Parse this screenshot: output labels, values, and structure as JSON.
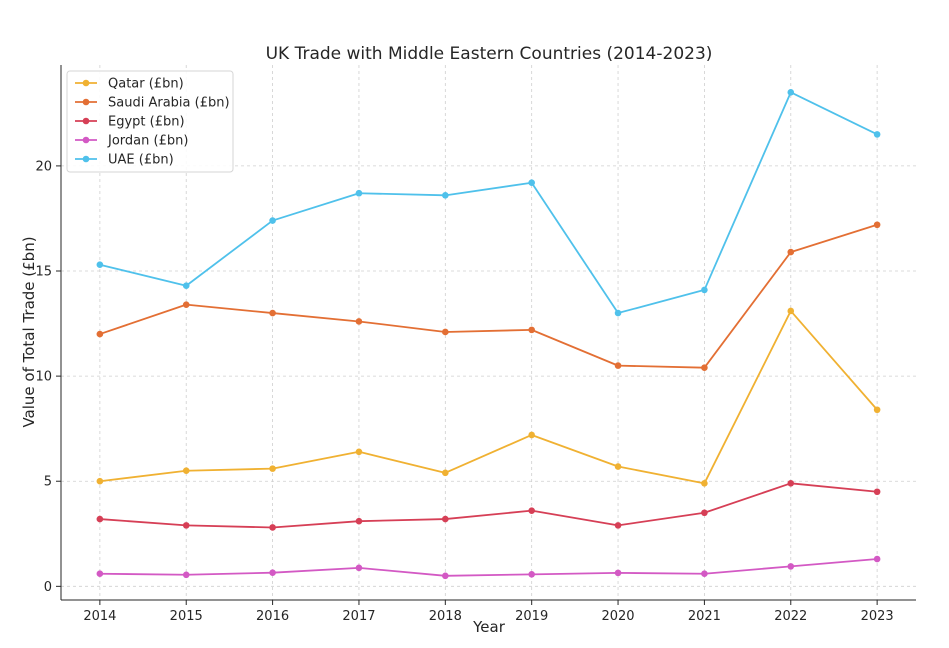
{
  "chart_data": {
    "type": "line",
    "title": "UK Trade with Middle Eastern Countries (2014-2023)",
    "xlabel": "Year",
    "ylabel": "Value of Total Trade (£bn)",
    "x": [
      2014,
      2015,
      2016,
      2017,
      2018,
      2019,
      2020,
      2021,
      2022,
      2023
    ],
    "xlim": [
      2013.55,
      2023.45
    ],
    "ylim": [
      -0.65,
      24.8
    ],
    "yticks": [
      0,
      5,
      10,
      15,
      20
    ],
    "grid": true,
    "legend_position": "upper-left",
    "series": [
      {
        "name": "Qatar (£bn)",
        "color": "#F0B132",
        "values": [
          5.0,
          5.5,
          5.6,
          6.4,
          5.4,
          7.2,
          5.7,
          4.9,
          13.1,
          8.4
        ]
      },
      {
        "name": "Saudi Arabia (£bn)",
        "color": "#E36F34",
        "values": [
          12.0,
          13.4,
          13.0,
          12.6,
          12.1,
          12.2,
          10.5,
          10.4,
          15.9,
          17.2
        ]
      },
      {
        "name": "Egypt (£bn)",
        "color": "#D63F56",
        "values": [
          3.2,
          2.9,
          2.8,
          3.1,
          3.2,
          3.6,
          2.9,
          3.5,
          4.9,
          4.5
        ]
      },
      {
        "name": "Jordan (£bn)",
        "color": "#D359C4",
        "values": [
          0.6,
          0.55,
          0.65,
          0.88,
          0.5,
          0.57,
          0.64,
          0.6,
          0.95,
          1.3
        ]
      },
      {
        "name": "UAE (£bn)",
        "color": "#4FC1EB",
        "values": [
          15.3,
          14.3,
          17.4,
          18.7,
          18.6,
          19.2,
          13.0,
          14.1,
          23.5,
          21.5
        ]
      }
    ]
  }
}
